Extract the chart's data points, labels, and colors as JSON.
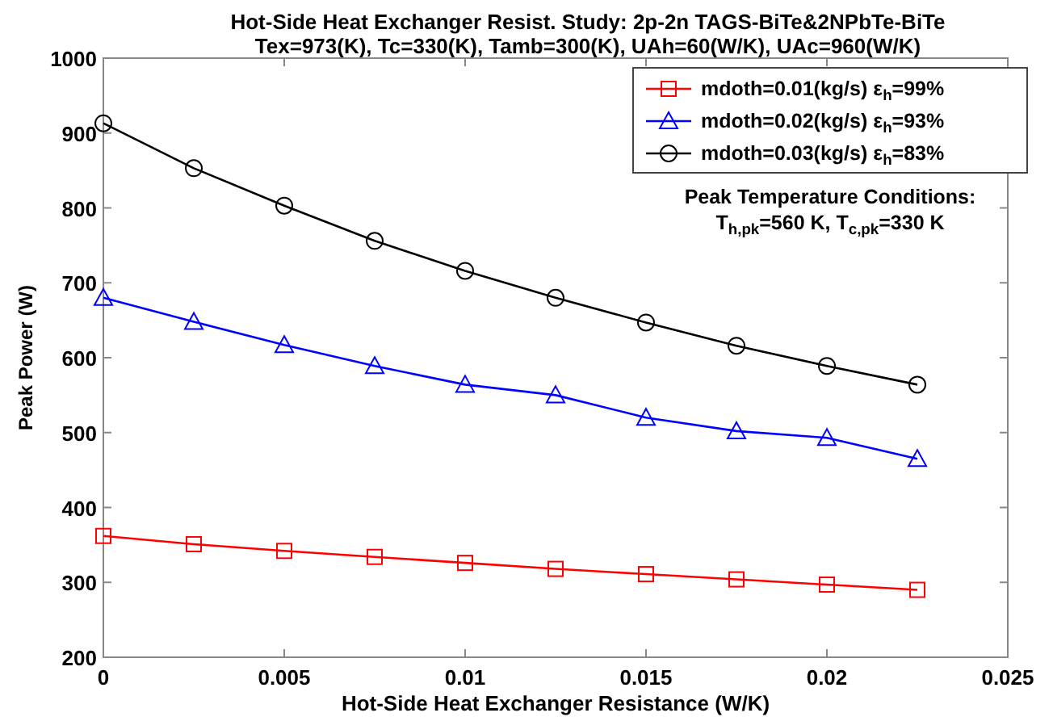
{
  "chart_data": {
    "type": "line",
    "title": "Hot-Side Heat Exchanger Resist. Study:   2p-2n TAGS-BiTe&2NPbTe-BiTe",
    "subtitle": "Tex=973(K), Tc=330(K), Tamb=300(K), UAh=60(W/K), UAc=960(W/K)",
    "xlabel": "Hot-Side Heat Exchanger Resistance (W/K)",
    "ylabel": "Peak Power (W)",
    "x": [
      0,
      0.0025,
      0.005,
      0.0075,
      0.01,
      0.0125,
      0.015,
      0.0175,
      0.02,
      0.0225
    ],
    "series": [
      {
        "name": "mdoth=0.01(kg/s) ε$_{h}$=99%",
        "color": "#ff0000",
        "marker": "square",
        "values": [
          362,
          351,
          342,
          334,
          326,
          318,
          311,
          304,
          297,
          290
        ]
      },
      {
        "name": "mdoth=0.02(kg/s) ε$_{h}$=93%",
        "color": "#0000ff",
        "marker": "triangle",
        "values": [
          680,
          648,
          617,
          589,
          564,
          550,
          520,
          502,
          493,
          465
        ]
      },
      {
        "name": "mdoth=0.03(kg/s) ε$_{h}$=83%",
        "color": "#000000",
        "marker": "circle",
        "values": [
          913,
          853,
          803,
          756,
          716,
          680,
          647,
          616,
          589,
          564
        ]
      }
    ],
    "xlim": [
      0,
      0.025
    ],
    "xticks": [
      0,
      0.005,
      0.01,
      0.015,
      0.02,
      0.025
    ],
    "ylim": [
      200,
      1000
    ],
    "yticks": [
      200,
      300,
      400,
      500,
      600,
      700,
      800,
      900,
      1000
    ],
    "grid": false,
    "legend": "top right",
    "line_style": "solid",
    "annotations": [
      "Peak Temperature Conditions:",
      "T$_{h,pk}$=560 K, T$_{c,pk}$=330 K"
    ]
  }
}
